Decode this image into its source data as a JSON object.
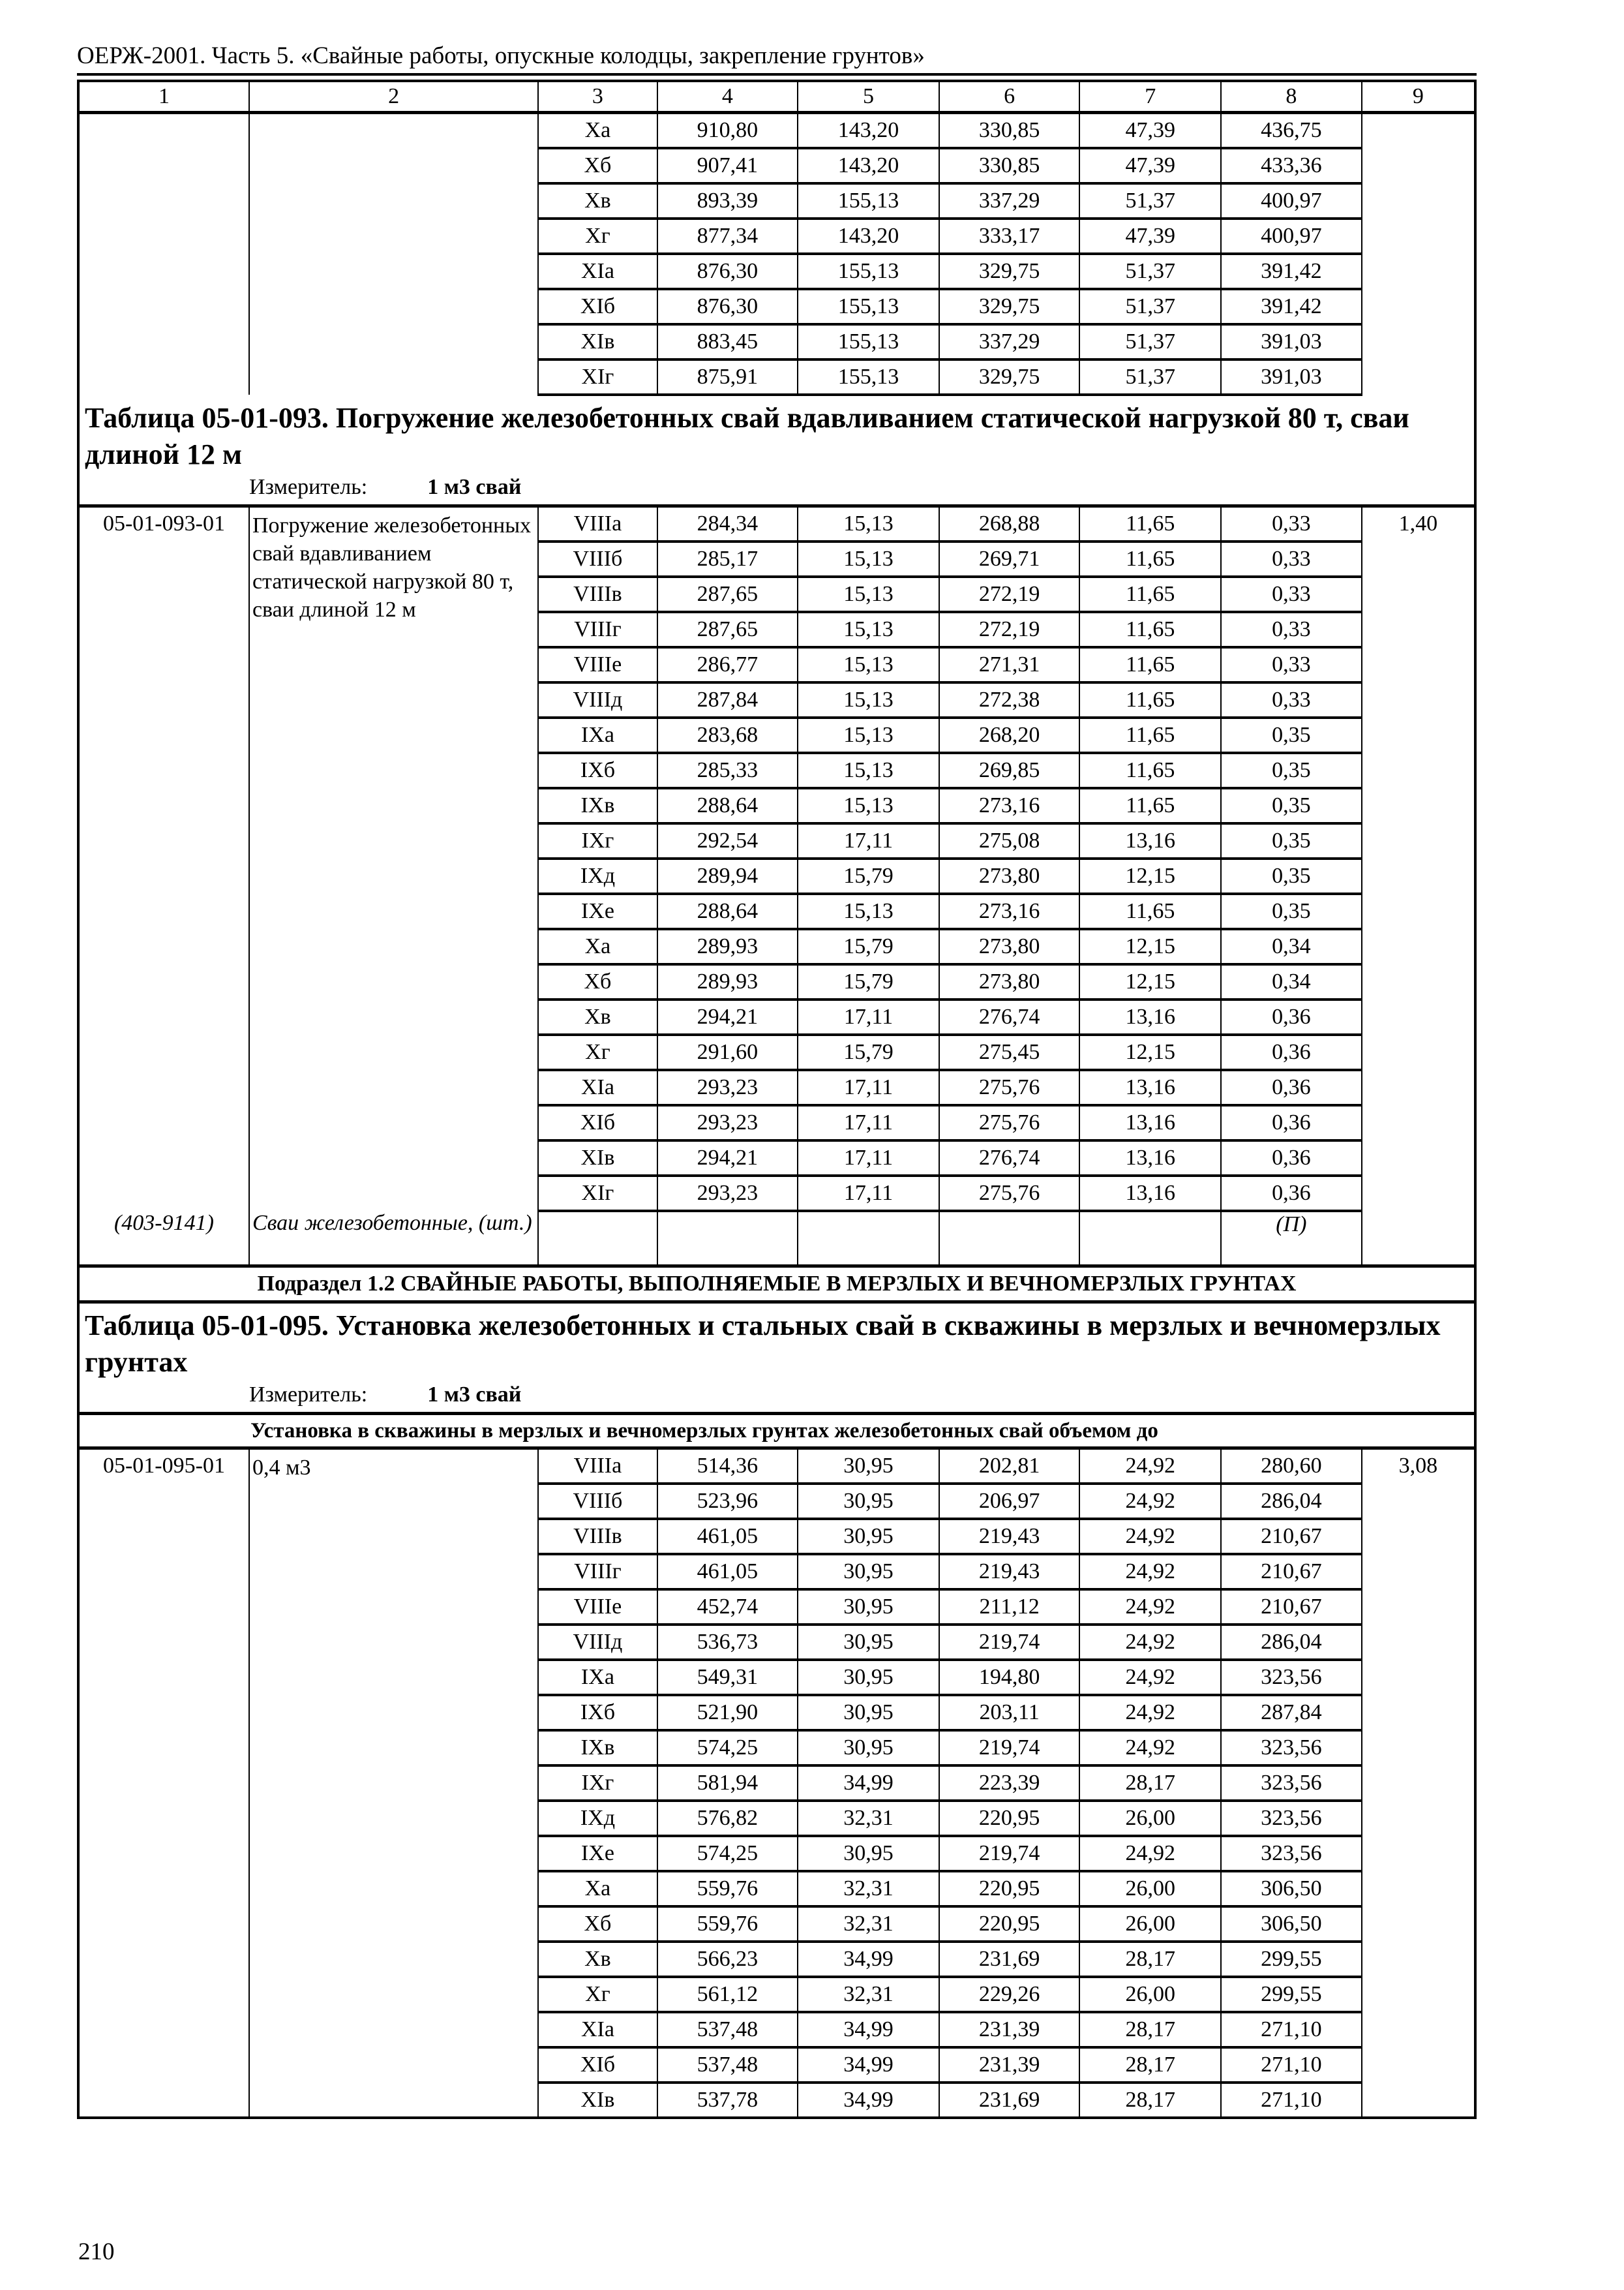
{
  "header": {
    "title": "ОЕРЖ-2001. Часть 5. «Свайные работы, опускные колодцы, закрепление грунтов»",
    "page_number": "210"
  },
  "column_numbers": [
    "1",
    "2",
    "3",
    "4",
    "5",
    "6",
    "7",
    "8",
    "9"
  ],
  "continuation_rows": [
    [
      "Xа",
      "910,80",
      "143,20",
      "330,85",
      "47,39",
      "436,75"
    ],
    [
      "Xб",
      "907,41",
      "143,20",
      "330,85",
      "47,39",
      "433,36"
    ],
    [
      "Xв",
      "893,39",
      "155,13",
      "337,29",
      "51,37",
      "400,97"
    ],
    [
      "Xг",
      "877,34",
      "143,20",
      "333,17",
      "47,39",
      "400,97"
    ],
    [
      "XIа",
      "876,30",
      "155,13",
      "329,75",
      "51,37",
      "391,42"
    ],
    [
      "XIб",
      "876,30",
      "155,13",
      "329,75",
      "51,37",
      "391,42"
    ],
    [
      "XIв",
      "883,45",
      "155,13",
      "337,29",
      "51,37",
      "391,03"
    ],
    [
      "XIг",
      "875,91",
      "155,13",
      "329,75",
      "51,37",
      "391,03"
    ]
  ],
  "table_093": {
    "title": "Таблица 05-01-093. Погружение железобетонных свай вдавливанием статической нагрузкой 80 т, сваи длиной 12 м",
    "measure_label": "Измеритель:",
    "measure_value": "1 м3 свай",
    "code": "05-01-093-01",
    "description": "Погружение железобетонных свай вдавливанием статической нагрузкой 80 т, сваи длиной 12 м",
    "col9": "1,40",
    "rows": [
      [
        "VIIIа",
        "284,34",
        "15,13",
        "268,88",
        "11,65",
        "0,33"
      ],
      [
        "VIIIб",
        "285,17",
        "15,13",
        "269,71",
        "11,65",
        "0,33"
      ],
      [
        "VIIIв",
        "287,65",
        "15,13",
        "272,19",
        "11,65",
        "0,33"
      ],
      [
        "VIIIг",
        "287,65",
        "15,13",
        "272,19",
        "11,65",
        "0,33"
      ],
      [
        "VIIIе",
        "286,77",
        "15,13",
        "271,31",
        "11,65",
        "0,33"
      ],
      [
        "VIIIд",
        "287,84",
        "15,13",
        "272,38",
        "11,65",
        "0,33"
      ],
      [
        "IXа",
        "283,68",
        "15,13",
        "268,20",
        "11,65",
        "0,35"
      ],
      [
        "IXб",
        "285,33",
        "15,13",
        "269,85",
        "11,65",
        "0,35"
      ],
      [
        "IXв",
        "288,64",
        "15,13",
        "273,16",
        "11,65",
        "0,35"
      ],
      [
        "IXг",
        "292,54",
        "17,11",
        "275,08",
        "13,16",
        "0,35"
      ],
      [
        "IXд",
        "289,94",
        "15,79",
        "273,80",
        "12,15",
        "0,35"
      ],
      [
        "IXе",
        "288,64",
        "15,13",
        "273,16",
        "11,65",
        "0,35"
      ],
      [
        "Xа",
        "289,93",
        "15,79",
        "273,80",
        "12,15",
        "0,34"
      ],
      [
        "Xб",
        "289,93",
        "15,79",
        "273,80",
        "12,15",
        "0,34"
      ],
      [
        "Xв",
        "294,21",
        "17,11",
        "276,74",
        "13,16",
        "0,36"
      ],
      [
        "Xг",
        "291,60",
        "15,79",
        "275,45",
        "12,15",
        "0,36"
      ],
      [
        "XIа",
        "293,23",
        "17,11",
        "275,76",
        "13,16",
        "0,36"
      ],
      [
        "XIб",
        "293,23",
        "17,11",
        "275,76",
        "13,16",
        "0,36"
      ],
      [
        "XIв",
        "294,21",
        "17,11",
        "276,74",
        "13,16",
        "0,36"
      ],
      [
        "XIг",
        "293,23",
        "17,11",
        "275,76",
        "13,16",
        "0,36"
      ]
    ],
    "footer": {
      "code": "(403-9141)",
      "description": "Сваи железобетонные, (шт.)",
      "col8": "(П)"
    }
  },
  "subsection_title": "Подраздел 1.2 СВАЙНЫЕ РАБОТЫ, ВЫПОЛНЯЕМЫЕ В МЕРЗЛЫХ И ВЕЧНОМЕРЗЛЫХ ГРУНТАХ",
  "table_095": {
    "title": "Таблица 05-01-095. Установка железобетонных и стальных свай в скважины в мерзлых и вечномерзлых грунтах",
    "measure_label": "Измеритель:",
    "measure_value": "1 м3 свай",
    "subheader": "Установка в скважины в мерзлых и вечномерзлых грунтах железобетонных свай объемом до",
    "code": "05-01-095-01",
    "description": "0,4 м3",
    "col9": "3,08",
    "rows": [
      [
        "VIIIа",
        "514,36",
        "30,95",
        "202,81",
        "24,92",
        "280,60"
      ],
      [
        "VIIIб",
        "523,96",
        "30,95",
        "206,97",
        "24,92",
        "286,04"
      ],
      [
        "VIIIв",
        "461,05",
        "30,95",
        "219,43",
        "24,92",
        "210,67"
      ],
      [
        "VIIIг",
        "461,05",
        "30,95",
        "219,43",
        "24,92",
        "210,67"
      ],
      [
        "VIIIе",
        "452,74",
        "30,95",
        "211,12",
        "24,92",
        "210,67"
      ],
      [
        "VIIIд",
        "536,73",
        "30,95",
        "219,74",
        "24,92",
        "286,04"
      ],
      [
        "IXа",
        "549,31",
        "30,95",
        "194,80",
        "24,92",
        "323,56"
      ],
      [
        "IXб",
        "521,90",
        "30,95",
        "203,11",
        "24,92",
        "287,84"
      ],
      [
        "IXв",
        "574,25",
        "30,95",
        "219,74",
        "24,92",
        "323,56"
      ],
      [
        "IXг",
        "581,94",
        "34,99",
        "223,39",
        "28,17",
        "323,56"
      ],
      [
        "IXд",
        "576,82",
        "32,31",
        "220,95",
        "26,00",
        "323,56"
      ],
      [
        "IXе",
        "574,25",
        "30,95",
        "219,74",
        "24,92",
        "323,56"
      ],
      [
        "Xа",
        "559,76",
        "32,31",
        "220,95",
        "26,00",
        "306,50"
      ],
      [
        "Xб",
        "559,76",
        "32,31",
        "220,95",
        "26,00",
        "306,50"
      ],
      [
        "Xв",
        "566,23",
        "34,99",
        "231,69",
        "28,17",
        "299,55"
      ],
      [
        "Xг",
        "561,12",
        "32,31",
        "229,26",
        "26,00",
        "299,55"
      ],
      [
        "XIа",
        "537,48",
        "34,99",
        "231,39",
        "28,17",
        "271,10"
      ],
      [
        "XIб",
        "537,48",
        "34,99",
        "231,39",
        "28,17",
        "271,10"
      ],
      [
        "XIв",
        "537,78",
        "34,99",
        "231,69",
        "28,17",
        "271,10"
      ]
    ]
  }
}
